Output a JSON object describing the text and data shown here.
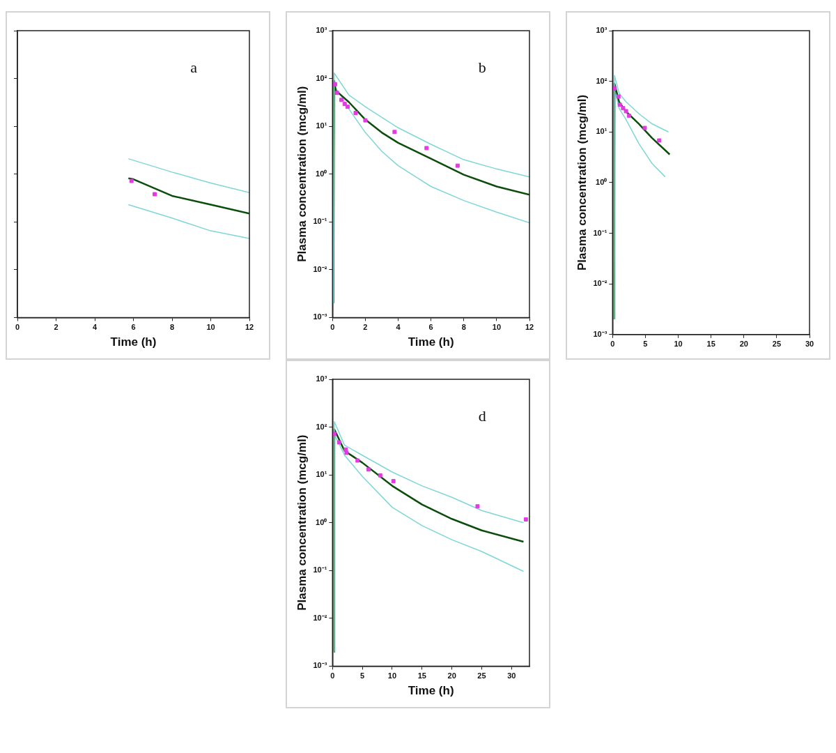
{
  "chart_data": [
    {
      "type": "line",
      "annotations": [
        "a"
      ],
      "xlabel": "Time (h)",
      "log": "y",
      "grid": false,
      "legend": false,
      "tick_labels": "x",
      "xlim": [
        0,
        12
      ],
      "xticks": [
        0,
        2,
        4,
        6,
        8,
        10,
        12
      ],
      "ylim": [
        0.001,
        1000
      ],
      "yticks": [
        {
          "value": 0.001,
          "label": null
        },
        {
          "value": 0.01,
          "label": null
        },
        {
          "value": 0.1,
          "label": null
        },
        {
          "value": 1,
          "label": null
        },
        {
          "value": 10,
          "label": null
        },
        {
          "value": 100,
          "label": null
        },
        {
          "value": 1000,
          "label": null
        }
      ],
      "series": [
        {
          "color": "#7fd6d6",
          "x": [
            5.74,
            8,
            10,
            12
          ],
          "values": [
            2.1,
            1.1,
            0.65,
            0.41
          ]
        },
        {
          "color": "#0b4d0b",
          "x": [
            5.74,
            6,
            8,
            10,
            12
          ],
          "values": [
            0.82,
            0.78,
            0.35,
            0.23,
            0.15
          ]
        },
        {
          "color": "#7fd6d6",
          "x": [
            5.74,
            8,
            10,
            12
          ],
          "values": [
            0.23,
            0.12,
            0.065,
            0.045
          ]
        },
        {
          "type": "scatter",
          "marker": "square",
          "color": "#e23be2",
          "x": [
            5.9,
            7.1
          ],
          "values": [
            0.72,
            0.38
          ]
        }
      ]
    },
    {
      "type": "line",
      "annotations": [
        "b"
      ],
      "xlabel": "Time (h)",
      "ylabel": "Plasma concentration (mcg/ml)",
      "log": "y",
      "grid": false,
      "legend": false,
      "xlim": [
        0,
        12
      ],
      "xticks": [
        0,
        2,
        4,
        6,
        8,
        10,
        12
      ],
      "ylim": [
        0.001,
        1000
      ],
      "yticks": [
        {
          "value": 0.001,
          "label": "10⁻³"
        },
        {
          "value": 0.01,
          "label": "10⁻²"
        },
        {
          "value": 0.1,
          "label": "10⁻¹"
        },
        {
          "value": 1,
          "label": "10⁰"
        },
        {
          "value": 10,
          "label": "10¹"
        },
        {
          "value": 100,
          "label": "10²"
        },
        {
          "value": 1000,
          "label": "10³"
        }
      ],
      "series": [
        {
          "color": "#7fd6d6",
          "x": [
            0.05,
            0.1,
            1,
            2,
            4,
            6,
            8,
            10,
            12
          ],
          "values": [
            0.002,
            130,
            45,
            25.6,
            9.3,
            4.2,
            2.0,
            1.28,
            0.87
          ]
        },
        {
          "color": "#0b4d0b",
          "x": [
            0.05,
            0.1,
            0.2,
            1,
            2,
            3,
            4,
            6,
            8,
            10,
            12
          ],
          "values": [
            0.002,
            90,
            56,
            32,
            13.8,
            7.4,
            4.5,
            2.1,
            0.97,
            0.55,
            0.37
          ]
        },
        {
          "color": "#7fd6d6",
          "x": [
            0.05,
            0.1,
            0.5,
            1,
            2,
            3,
            4,
            6,
            8,
            10,
            12
          ],
          "values": [
            0.002,
            70,
            45,
            23,
            7.4,
            3.0,
            1.5,
            0.55,
            0.28,
            0.16,
            0.096
          ]
        },
        {
          "type": "scatter",
          "marker": "square",
          "color": "#e23be2",
          "x": [
            0.16,
            0.27,
            0.54,
            0.74,
            0.92,
            1.41,
            2.0,
            3.78,
            5.73,
            7.62
          ],
          "values": [
            76,
            50,
            35.6,
            29.3,
            25.6,
            19,
            13.3,
            7.6,
            3.5,
            1.5
          ]
        }
      ]
    },
    {
      "type": "line",
      "ylabel": "Plasma concentration (mcg/ml)",
      "log": "y",
      "grid": false,
      "legend": false,
      "xlim": [
        0,
        30
      ],
      "xticks": [
        0,
        5,
        10,
        15,
        20,
        25,
        30
      ],
      "ylim": [
        0.001,
        1000
      ],
      "yticks": [
        {
          "value": 0.001,
          "label": "10⁻³"
        },
        {
          "value": 0.01,
          "label": "10⁻²"
        },
        {
          "value": 0.1,
          "label": "10⁻¹"
        },
        {
          "value": 1,
          "label": "10⁰"
        },
        {
          "value": 10,
          "label": "10¹"
        },
        {
          "value": 100,
          "label": "10²"
        },
        {
          "value": 1000,
          "label": "10³"
        }
      ],
      "series": [
        {
          "color": "#7fd6d6",
          "x": [
            0.25,
            0.3,
            1,
            2,
            4,
            6,
            8.5
          ],
          "values": [
            0.002,
            130,
            58,
            40,
            23,
            14.5,
            10
          ]
        },
        {
          "color": "#0b4d0b",
          "x": [
            0.25,
            0.3,
            1,
            2,
            4,
            6,
            8.7
          ],
          "values": [
            0.002,
            90,
            39,
            25.7,
            14.5,
            7.6,
            3.6
          ]
        },
        {
          "color": "#7fd6d6",
          "x": [
            0.25,
            0.3,
            1,
            2,
            4,
            6,
            8
          ],
          "values": [
            0.002,
            70,
            29,
            18,
            5.9,
            2.4,
            1.3
          ]
        },
        {
          "type": "scatter",
          "marker": "square",
          "color": "#e23be2",
          "x": [
            0.26,
            0.9,
            1.1,
            1.6,
            2.05,
            2.5,
            4.9,
            7.1
          ],
          "values": [
            72,
            50,
            34.5,
            29.5,
            25.7,
            21,
            12,
            6.8
          ]
        }
      ]
    },
    {
      "type": "line",
      "annotations": [
        "d"
      ],
      "xlabel": "Time (h)",
      "ylabel": "Plasma concentration (mcg/ml)",
      "log": "y",
      "grid": false,
      "legend": false,
      "xlim": [
        0,
        33
      ],
      "xticks": [
        0,
        5,
        10,
        15,
        20,
        25,
        30
      ],
      "ylim": [
        0.001,
        1000
      ],
      "yticks": [
        {
          "value": 0.001,
          "label": "10⁻³"
        },
        {
          "value": 0.01,
          "label": "10⁻²"
        },
        {
          "value": 0.1,
          "label": "10⁻¹"
        },
        {
          "value": 1,
          "label": "10⁰"
        },
        {
          "value": 10,
          "label": "10¹"
        },
        {
          "value": 100,
          "label": "10²"
        },
        {
          "value": 1000,
          "label": "10³"
        }
      ],
      "series": [
        {
          "color": "#7fd6d6",
          "x": [
            0.25,
            0.3,
            2,
            5,
            10,
            15,
            20,
            25,
            32
          ],
          "values": [
            0.002,
            130,
            42,
            25.7,
            11.5,
            5.9,
            3.4,
            1.8,
            1.0
          ]
        },
        {
          "color": "#0b4d0b",
          "x": [
            0.25,
            0.3,
            2,
            5,
            10,
            15,
            20,
            25,
            32
          ],
          "values": [
            0.002,
            90,
            32,
            18,
            5.9,
            2.4,
            1.2,
            0.69,
            0.4
          ]
        },
        {
          "color": "#7fd6d6",
          "x": [
            0.25,
            0.3,
            2,
            5,
            10,
            15,
            20,
            25,
            32
          ],
          "values": [
            0.002,
            70,
            26,
            9.3,
            2.1,
            0.87,
            0.44,
            0.25,
            0.096
          ]
        },
        {
          "type": "scatter",
          "marker": "square",
          "color": "#e23be2",
          "x": [
            0.3,
            1.1,
            2.2,
            2.35,
            4.2,
            6.05,
            8.0,
            10.2,
            24.3,
            32.4
          ],
          "values": [
            72,
            48,
            34,
            29,
            20,
            13,
            9.8,
            7.4,
            2.2,
            1.17
          ]
        }
      ]
    }
  ]
}
